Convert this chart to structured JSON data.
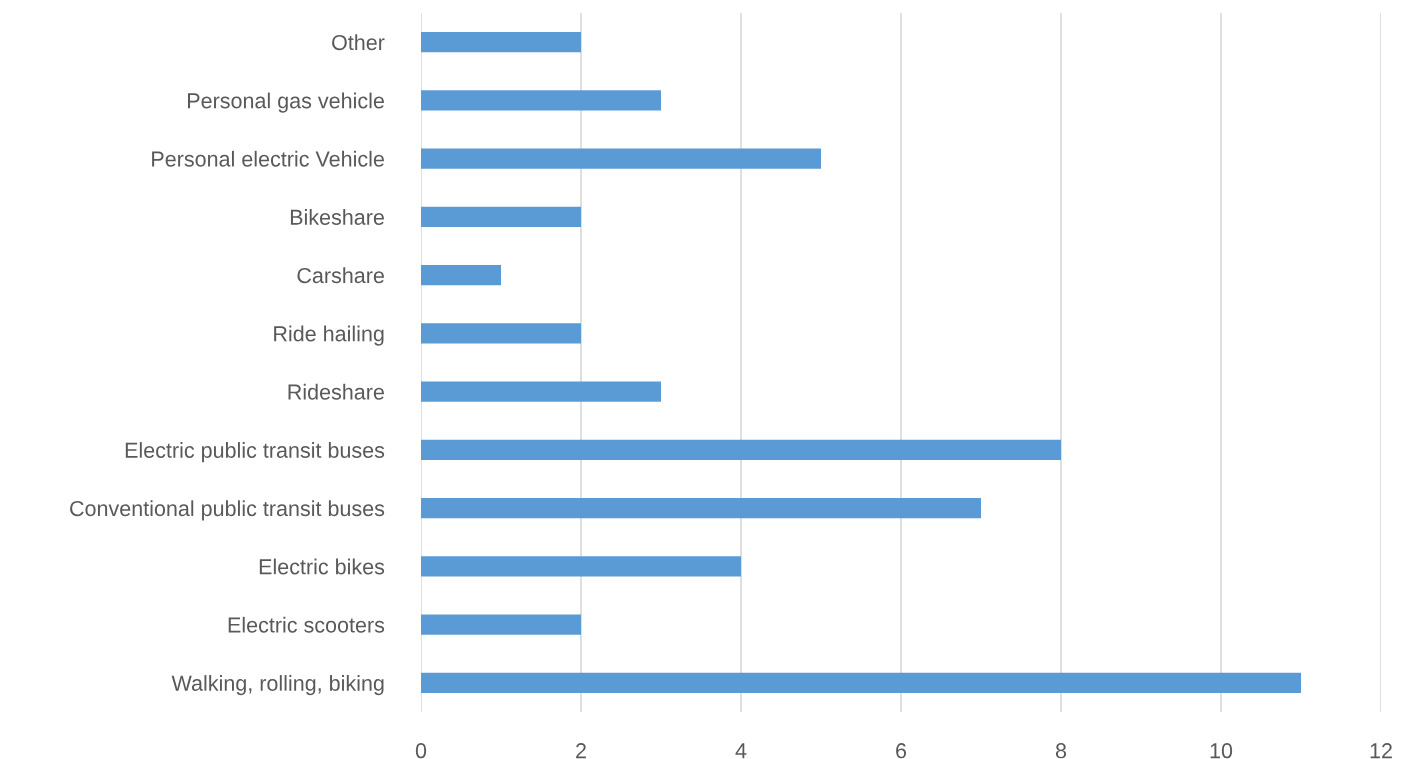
{
  "chart_data": {
    "type": "bar",
    "orientation": "horizontal",
    "categories": [
      "Other",
      "Personal gas vehicle",
      "Personal electric Vehicle",
      "Bikeshare",
      "Carshare",
      "Ride hailing",
      "Rideshare",
      "Electric public transit buses",
      "Conventional public transit buses",
      "Electric bikes",
      "Electric scooters",
      "Walking, rolling, biking"
    ],
    "values": [
      2,
      3,
      5,
      2,
      1,
      2,
      3,
      8,
      7,
      4,
      2,
      11
    ],
    "color": "#5b9bd5",
    "xlim": [
      0,
      12
    ],
    "xticks": [
      0,
      2,
      4,
      6,
      8,
      10,
      12
    ],
    "grid": "x",
    "legend": false
  }
}
